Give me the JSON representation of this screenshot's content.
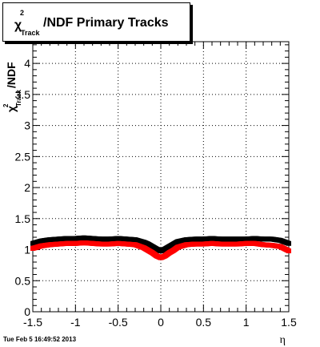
{
  "chart_data": {
    "type": "scatter",
    "title": "χ²_Track/NDF  Primary Tracks",
    "title_parts": {
      "symbol": "χ",
      "superscript": "2",
      "subscript": "Track",
      "rest": "/NDF  Primary Tracks"
    },
    "xlabel": "η",
    "ylabel_parts": {
      "symbol": "χ",
      "superscript": "2",
      "subscript": "Track",
      "rest": "/NDF"
    },
    "xlim": [
      -1.5,
      1.5
    ],
    "ylim": [
      0,
      4.35
    ],
    "x_ticks": [
      "-1.5",
      "-1",
      "-0.5",
      "0",
      "0.5",
      "1",
      "1.5"
    ],
    "y_ticks": [
      "0",
      "0.5",
      "1",
      "1.5",
      "2",
      "2.5",
      "3",
      "3.5",
      "4"
    ],
    "grid": true,
    "series": [
      {
        "color": "#000000",
        "x": [
          -1.5,
          -1.4,
          -1.3,
          -1.2,
          -1.1,
          -1.0,
          -0.9,
          -0.8,
          -0.7,
          -0.6,
          -0.5,
          -0.4,
          -0.3,
          -0.2,
          -0.15,
          -0.1,
          -0.05,
          0.0,
          0.05,
          0.1,
          0.15,
          0.2,
          0.3,
          0.4,
          0.5,
          0.6,
          0.7,
          0.8,
          0.9,
          1.0,
          1.1,
          1.2,
          1.3,
          1.4,
          1.5
        ],
        "y": [
          1.1,
          1.14,
          1.16,
          1.17,
          1.18,
          1.18,
          1.19,
          1.18,
          1.17,
          1.17,
          1.18,
          1.17,
          1.16,
          1.12,
          1.09,
          1.05,
          1.01,
          0.98,
          1.01,
          1.05,
          1.09,
          1.13,
          1.16,
          1.17,
          1.17,
          1.18,
          1.17,
          1.17,
          1.17,
          1.17,
          1.18,
          1.17,
          1.17,
          1.15,
          1.1
        ]
      },
      {
        "color": "#ff0000",
        "x": [
          -1.5,
          -1.4,
          -1.3,
          -1.2,
          -1.1,
          -1.0,
          -0.9,
          -0.8,
          -0.7,
          -0.6,
          -0.5,
          -0.4,
          -0.3,
          -0.2,
          -0.15,
          -0.1,
          -0.05,
          0.0,
          0.05,
          0.1,
          0.15,
          0.2,
          0.3,
          0.4,
          0.5,
          0.6,
          0.7,
          0.8,
          0.9,
          1.0,
          1.1,
          1.2,
          1.3,
          1.4,
          1.5
        ],
        "y": [
          1.02,
          1.06,
          1.08,
          1.09,
          1.1,
          1.1,
          1.11,
          1.1,
          1.09,
          1.09,
          1.1,
          1.09,
          1.08,
          1.03,
          0.99,
          0.95,
          0.9,
          0.87,
          0.9,
          0.95,
          0.99,
          1.04,
          1.08,
          1.09,
          1.09,
          1.1,
          1.09,
          1.09,
          1.09,
          1.1,
          1.1,
          1.08,
          1.07,
          1.05,
          0.98
        ]
      }
    ]
  },
  "footer_text": "Tue Feb  5 16:49:52 2013"
}
